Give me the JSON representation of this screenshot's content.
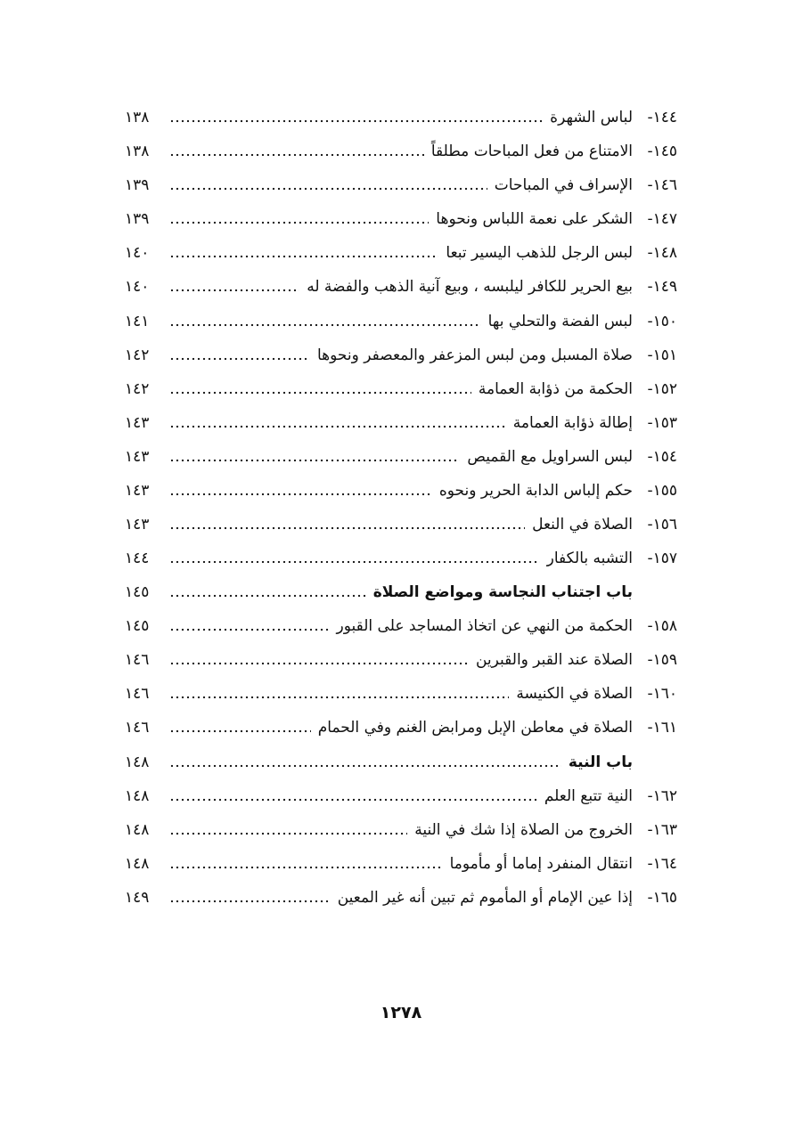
{
  "entries": [
    {
      "type": "item",
      "num": "١٤٤-",
      "title": "لباس الشهرة",
      "page": "١٣٨"
    },
    {
      "type": "item",
      "num": "١٤٥-",
      "title": "الامتناع من فعل المباحات مطلقاً",
      "page": "١٣٨"
    },
    {
      "type": "item",
      "num": "١٤٦-",
      "title": "الإسراف في المباحات",
      "page": "١٣٩"
    },
    {
      "type": "item",
      "num": "١٤٧-",
      "title": "الشكر على نعمة اللباس ونحوها",
      "page": "١٣٩"
    },
    {
      "type": "item",
      "num": "١٤٨-",
      "title": "لبس الرجل للذهب اليسير تبعا",
      "page": "١٤٠"
    },
    {
      "type": "item",
      "num": "١٤٩-",
      "title": "بيع الحرير للكافر ليلبسه ، وبيع آنية الذهب والفضة له",
      "page": "١٤٠"
    },
    {
      "type": "item",
      "num": "١٥٠-",
      "title": "لبس الفضة والتحلي بها",
      "page": "١٤١"
    },
    {
      "type": "item",
      "num": "١٥١-",
      "title": "صلاة المسبل ومن لبس المزعفر والمعصفر ونحوها",
      "page": "١٤٢"
    },
    {
      "type": "item",
      "num": "١٥٢-",
      "title": "الحكمة من ذؤابة العمامة",
      "page": "١٤٢"
    },
    {
      "type": "item",
      "num": "١٥٣-",
      "title": "إطالة ذؤابة العمامة",
      "page": "١٤٣"
    },
    {
      "type": "item",
      "num": "١٥٤-",
      "title": "لبس السراويل مع القميص",
      "page": "١٤٣"
    },
    {
      "type": "item",
      "num": "١٥٥-",
      "title": "حكم إلباس الدابة الحرير ونحوه",
      "page": "١٤٣"
    },
    {
      "type": "item",
      "num": "١٥٦-",
      "title": "الصلاة في النعل",
      "page": "١٤٣"
    },
    {
      "type": "item",
      "num": "١٥٧-",
      "title": "التشبه بالكفار",
      "page": "١٤٤"
    },
    {
      "type": "heading",
      "num": "",
      "title": "باب اجتناب النجاسة ومواضع الصلاة",
      "page": "١٤٥"
    },
    {
      "type": "item",
      "num": "١٥٨-",
      "title": "الحكمة من النهي عن اتخاذ المساجد على القبور",
      "page": "١٤٥"
    },
    {
      "type": "item",
      "num": "١٥٩-",
      "title": "الصلاة عند القبر والقبرين",
      "page": "١٤٦"
    },
    {
      "type": "item",
      "num": "١٦٠-",
      "title": "الصلاة في الكنيسة",
      "page": "١٤٦"
    },
    {
      "type": "item",
      "num": "١٦١-",
      "title": "الصلاة في معاطن الإبل ومرابض الغنم وفي الحمام",
      "page": "١٤٦"
    },
    {
      "type": "heading",
      "num": "",
      "title": "باب النية",
      "page": "١٤٨"
    },
    {
      "type": "item",
      "num": "١٦٢-",
      "title": "النية تتبع العلم",
      "page": "١٤٨"
    },
    {
      "type": "item",
      "num": "١٦٣-",
      "title": "الخروج من الصلاة إذا شك في النية",
      "page": "١٤٨"
    },
    {
      "type": "item",
      "num": "١٦٤-",
      "title": "انتقال المنفرد إماما أو مأموما",
      "page": "١٤٨"
    },
    {
      "type": "item",
      "num": "١٦٥-",
      "title": "إذا عين الإمام أو المأموم ثم تبين أنه غير المعين",
      "page": "١٤٩"
    }
  ],
  "footer": {
    "page_number": "١٢٧٨"
  }
}
